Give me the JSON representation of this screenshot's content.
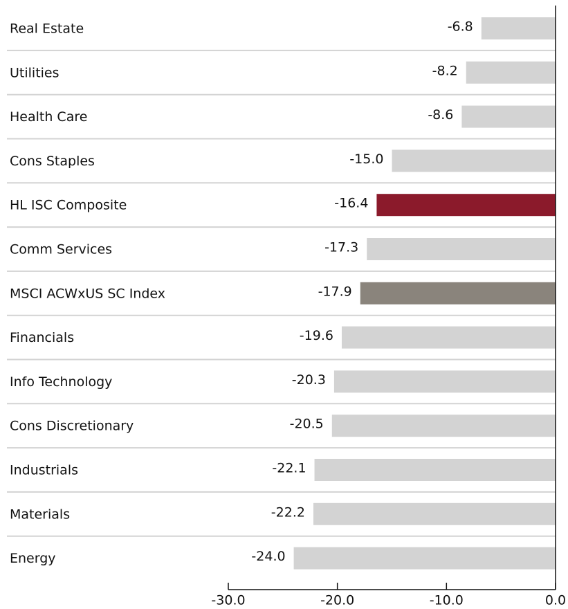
{
  "chart_data": {
    "type": "bar",
    "orientation": "horizontal",
    "categories": [
      "Real Estate",
      "Utilities",
      "Health Care",
      "Cons Staples",
      "HL ISC Composite",
      "Comm Services",
      "MSCI ACWxUS SC Index",
      "Financials",
      "Info Technology",
      "Cons Discretionary",
      "Industrials",
      "Materials",
      "Energy"
    ],
    "values": [
      -6.8,
      -8.2,
      -8.6,
      -15.0,
      -16.4,
      -17.3,
      -17.9,
      -19.6,
      -20.3,
      -20.5,
      -22.1,
      -22.2,
      -24.0
    ],
    "value_labels": [
      "-6.8",
      "-8.2",
      "-8.6",
      "-15.0",
      "-16.4",
      "-17.3",
      "-17.9",
      "-19.6",
      "-20.3",
      "-20.5",
      "-22.1",
      "-22.2",
      "-24.0"
    ],
    "colors": [
      "#d3d3d3",
      "#d3d3d3",
      "#d3d3d3",
      "#d3d3d3",
      "#8b1a2b",
      "#d3d3d3",
      "#8a847c",
      "#d3d3d3",
      "#d3d3d3",
      "#d3d3d3",
      "#d3d3d3",
      "#d3d3d3",
      "#d3d3d3"
    ],
    "xlim": [
      -30,
      0
    ],
    "xticks": [
      {
        "value": -30,
        "label": "-30.0"
      },
      {
        "value": -20,
        "label": "-20.0"
      },
      {
        "value": -10,
        "label": "-10.0"
      },
      {
        "value": 0,
        "label": "0.0"
      }
    ]
  }
}
